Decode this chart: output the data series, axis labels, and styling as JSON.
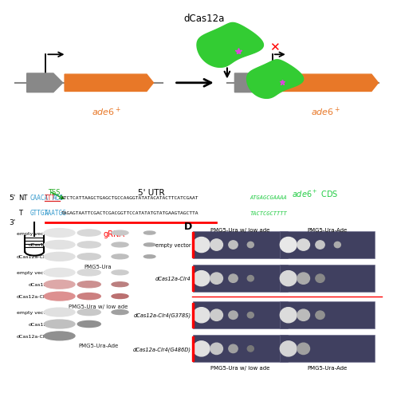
{
  "title": "dCas12a",
  "orange_color": "#e87828",
  "green_color": "#22aa22",
  "green_blob": "#33cc33",
  "red_color": "#cc0000",
  "blue_color": "#3399cc",
  "red_underline_color": "#dd2222",
  "gray_color": "#888888",
  "bg_dark": "#404060",
  "left_panel_rows": [
    "empty vector",
    "dCas12a",
    "dCas12a-Clr4"
  ],
  "left_panel_labels": [
    "PMG5-Ura",
    "PMG5-Ura w/ low ade",
    "PMG5-Ura-Ade"
  ],
  "D_label": "D",
  "D_rows": [
    "empty vector",
    "dCas12a-Clr4",
    "dCas12a-Clr4(G378S)",
    "dCas12a-Clr4(G486D)"
  ],
  "D_cols": [
    "PMG5-Ura w/ low ade",
    "PMG5-Ura-Ade"
  ]
}
